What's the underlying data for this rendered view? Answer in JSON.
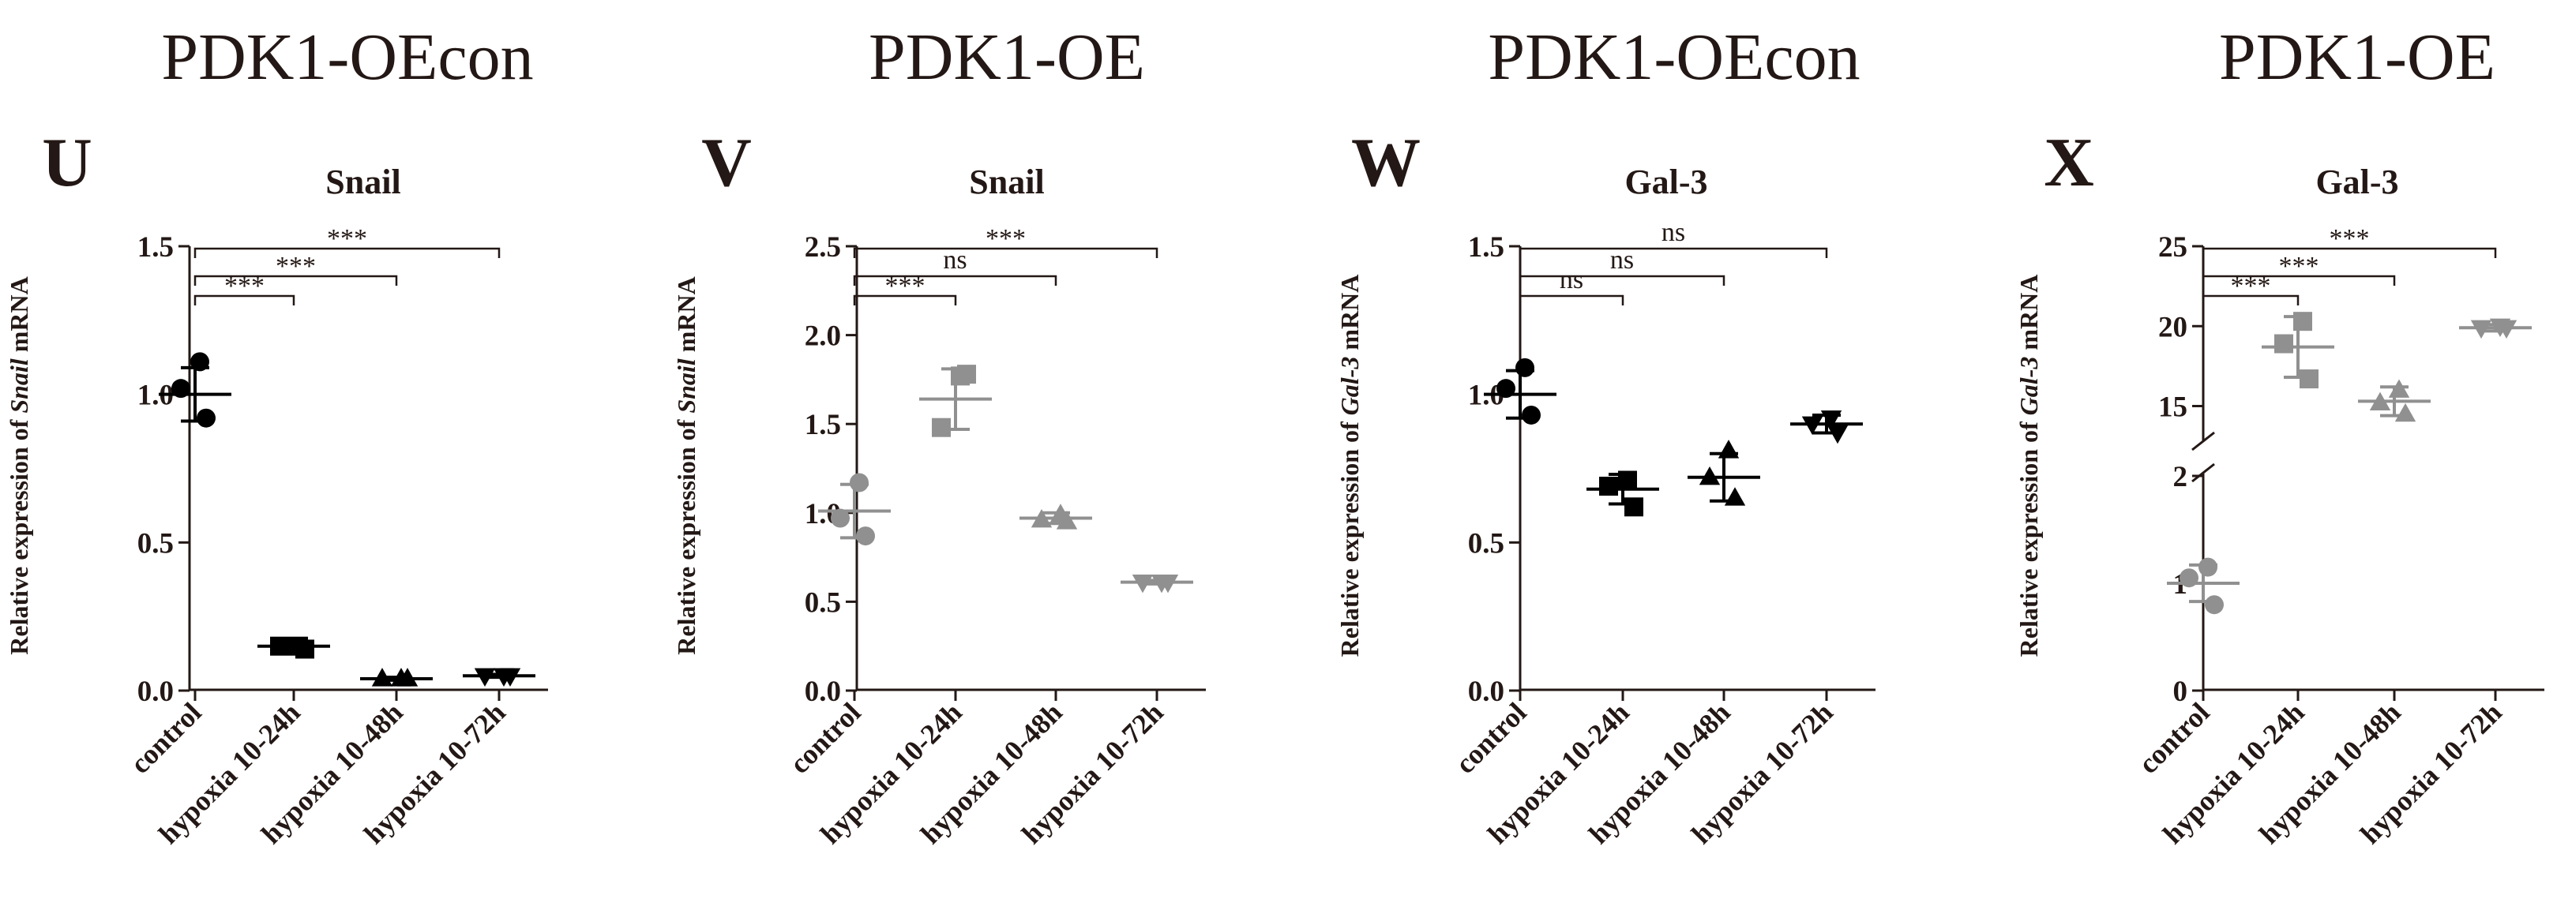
{
  "headers": [
    "PDK1-OEcon",
    "PDK1-OE",
    "PDK1-OEcon",
    "PDK1-OE"
  ],
  "chart_data": [
    {
      "type": "scatter",
      "panel": "U",
      "title": "Snail",
      "ylabel_prefix": "Relative expression of ",
      "ylabel_gene": "Snail",
      "ylabel_suffix": " mRNA",
      "categories": [
        "control",
        "hypoxia 10-24h",
        "hypoxia 10-48h",
        "hypoxia 10-72h"
      ],
      "ylim": [
        0,
        1.5
      ],
      "yticks": [
        0,
        0.5,
        1.0,
        1.5
      ],
      "ytick_labels": [
        "0.0",
        "0.5",
        "1.0",
        "1.5"
      ],
      "color": "#000000",
      "markers": [
        "circle",
        "square",
        "triangle",
        "triangle-down"
      ],
      "series": [
        {
          "name": "control",
          "mean": 1.0,
          "sd": 0.09,
          "points": [
            1.11,
            1.02,
            0.92
          ]
        },
        {
          "name": "hypoxia 10-24h",
          "mean": 0.15,
          "sd": 0.01,
          "points": [
            0.15,
            0.15,
            0.14
          ]
        },
        {
          "name": "hypoxia 10-48h",
          "mean": 0.04,
          "sd": 0.005,
          "points": [
            0.04,
            0.04,
            0.04
          ]
        },
        {
          "name": "hypoxia 10-72h",
          "mean": 0.05,
          "sd": 0.005,
          "points": [
            0.05,
            0.05,
            0.05
          ]
        }
      ],
      "significance": [
        {
          "from": 0,
          "to": 1,
          "label": "***"
        },
        {
          "from": 0,
          "to": 2,
          "label": "***"
        },
        {
          "from": 0,
          "to": 3,
          "label": "***"
        }
      ]
    },
    {
      "type": "scatter",
      "panel": "V",
      "title": "Snail",
      "ylabel_prefix": "Relative expression of ",
      "ylabel_gene": "Snail",
      "ylabel_suffix": " mRNA",
      "categories": [
        "control",
        "hypoxia 10-24h",
        "hypoxia 10-48h",
        "hypoxia 10-72h"
      ],
      "ylim": [
        0,
        2.5
      ],
      "yticks": [
        0,
        0.5,
        1.0,
        1.5,
        2.0,
        2.5
      ],
      "ytick_labels": [
        "0.0",
        "0.5",
        "1.0",
        "1.5",
        "2.0",
        "2.5"
      ],
      "color": "#909090",
      "markers": [
        "circle",
        "square",
        "triangle",
        "triangle-down"
      ],
      "series": [
        {
          "name": "control",
          "mean": 1.01,
          "sd": 0.15,
          "points": [
            1.17,
            0.97,
            0.87
          ]
        },
        {
          "name": "hypoxia 10-24h",
          "mean": 1.64,
          "sd": 0.17,
          "points": [
            1.77,
            1.48,
            1.78
          ]
        },
        {
          "name": "hypoxia 10-48h",
          "mean": 0.97,
          "sd": 0.03,
          "points": [
            0.99,
            0.96,
            0.95
          ]
        },
        {
          "name": "hypoxia 10-72h",
          "mean": 0.61,
          "sd": 0.01,
          "points": [
            0.61,
            0.61,
            0.61
          ]
        }
      ],
      "significance": [
        {
          "from": 0,
          "to": 1,
          "label": "***"
        },
        {
          "from": 0,
          "to": 2,
          "label": "ns"
        },
        {
          "from": 0,
          "to": 3,
          "label": "***"
        }
      ]
    },
    {
      "type": "scatter",
      "panel": "W",
      "title": "Gal-3",
      "ylabel_prefix": "Relative expression of ",
      "ylabel_gene": "Gal-3",
      "ylabel_suffix": " mRNA",
      "categories": [
        "control",
        "hypoxia 10-24h",
        "hypoxia 10-48h",
        "hypoxia 10-72h"
      ],
      "ylim": [
        0,
        1.5
      ],
      "yticks": [
        0,
        0.5,
        1.0,
        1.5
      ],
      "ytick_labels": [
        "0.0",
        "0.5",
        "1.0",
        "1.5"
      ],
      "color": "#000000",
      "markers": [
        "circle",
        "square",
        "triangle",
        "triangle-down"
      ],
      "series": [
        {
          "name": "control",
          "mean": 1.0,
          "sd": 0.08,
          "points": [
            1.09,
            1.02,
            0.93
          ]
        },
        {
          "name": "hypoxia 10-24h",
          "mean": 0.68,
          "sd": 0.05,
          "points": [
            0.71,
            0.69,
            0.62
          ]
        },
        {
          "name": "hypoxia 10-48h",
          "mean": 0.72,
          "sd": 0.08,
          "points": [
            0.81,
            0.72,
            0.65
          ]
        },
        {
          "name": "hypoxia 10-72h",
          "mean": 0.9,
          "sd": 0.03,
          "points": [
            0.92,
            0.9,
            0.87
          ]
        }
      ],
      "significance": [
        {
          "from": 0,
          "to": 1,
          "label": "ns"
        },
        {
          "from": 0,
          "to": 2,
          "label": "ns"
        },
        {
          "from": 0,
          "to": 3,
          "label": "ns"
        }
      ]
    },
    {
      "type": "scatter",
      "panel": "X",
      "title": "Gal-3",
      "ylabel_prefix": "Relative expression of ",
      "ylabel_gene": "Gal-3",
      "ylabel_suffix": " mRNA",
      "categories": [
        "control",
        "hypoxia 10-24h",
        "hypoxia 10-48h",
        "hypoxia 10-72h"
      ],
      "broken_axis": true,
      "lower_range": [
        0,
        2
      ],
      "upper_range": [
        13,
        25
      ],
      "yticks": [
        0,
        1,
        2,
        15,
        20,
        25
      ],
      "ytick_labels": [
        "0",
        "1",
        "2",
        "15",
        "20",
        "25"
      ],
      "color": "#909090",
      "markers": [
        "circle",
        "square",
        "triangle",
        "triangle-down"
      ],
      "series": [
        {
          "name": "control",
          "mean": 1.0,
          "sd": 0.17,
          "points": [
            1.15,
            1.05,
            0.8
          ]
        },
        {
          "name": "hypoxia 10-24h",
          "mean": 18.7,
          "sd": 1.9,
          "points": [
            20.3,
            18.9,
            16.7
          ]
        },
        {
          "name": "hypoxia 10-48h",
          "mean": 15.3,
          "sd": 0.9,
          "points": [
            16.0,
            15.2,
            14.5
          ]
        },
        {
          "name": "hypoxia 10-72h",
          "mean": 19.9,
          "sd": 0.2,
          "points": [
            20.0,
            19.9,
            19.9
          ]
        }
      ],
      "significance": [
        {
          "from": 0,
          "to": 1,
          "label": "***"
        },
        {
          "from": 0,
          "to": 2,
          "label": "***"
        },
        {
          "from": 0,
          "to": 3,
          "label": "***"
        }
      ]
    }
  ]
}
